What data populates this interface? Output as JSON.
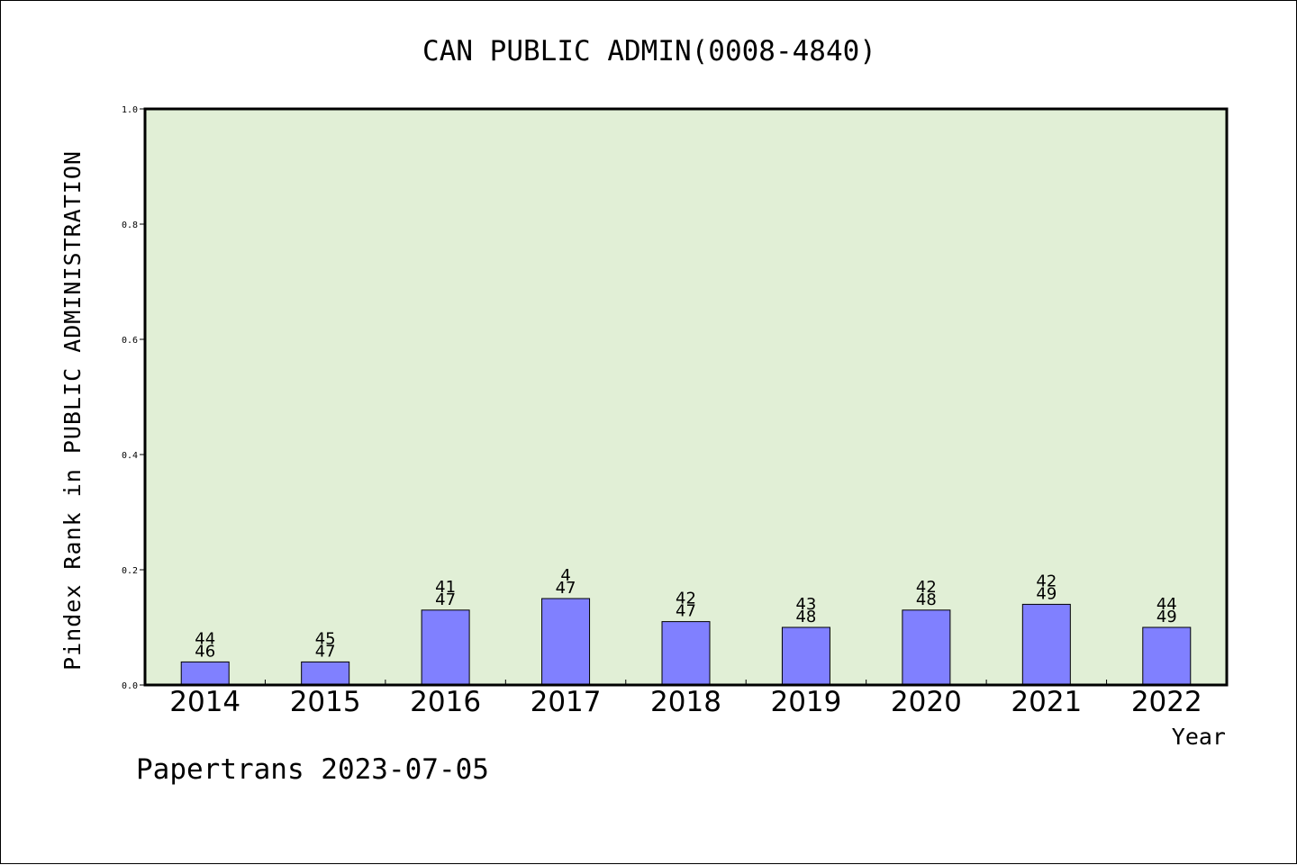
{
  "chart_data": {
    "type": "bar",
    "title": "CAN PUBLIC ADMIN(0008-4840)",
    "ylabel": "Pindex Rank in PUBLIC ADMINISTRATION",
    "xlabel": "Year",
    "ylim": [
      0,
      1.0
    ],
    "yticks": [
      "0.0",
      "0.2",
      "0.4",
      "0.6",
      "0.8",
      "1.0"
    ],
    "categories": [
      "2014",
      "2015",
      "2016",
      "2017",
      "2018",
      "2019",
      "2020",
      "2021",
      "2022"
    ],
    "values": [
      0.04,
      0.04,
      0.13,
      0.15,
      0.11,
      0.1,
      0.13,
      0.14,
      0.1
    ],
    "rank_labels": [
      "44",
      "45",
      "41",
      "4",
      "42",
      "43",
      "42",
      "42",
      "44"
    ],
    "total_labels": [
      "46",
      "47",
      "47",
      "47",
      "47",
      "48",
      "48",
      "49",
      "49"
    ],
    "grid": false,
    "colors": {
      "plot_background": "#e1efd6",
      "bar": "#8080ff"
    }
  },
  "footer": "Papertrans 2023-07-05"
}
